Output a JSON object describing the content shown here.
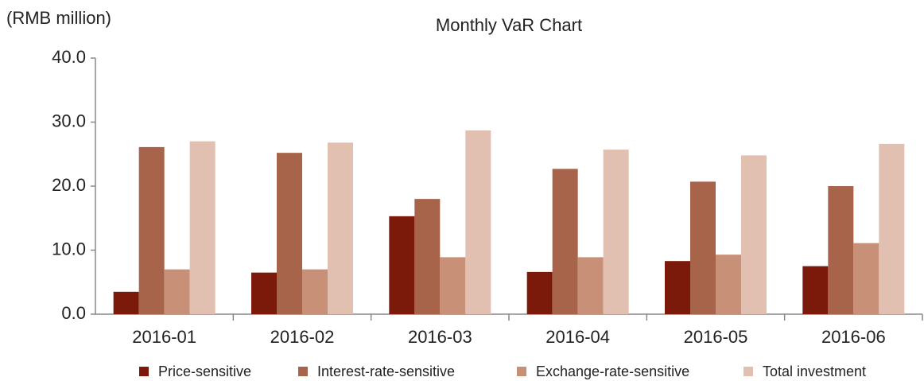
{
  "chart_data": {
    "type": "bar",
    "title": "Monthly VaR Chart",
    "y_label": "(RMB million)",
    "categories": [
      "2016-01",
      "2016-02",
      "2016-03",
      "2016-04",
      "2016-05",
      "2016-06"
    ],
    "series": [
      {
        "name": "Price-sensitive",
        "color": "#7b1a0a",
        "values": [
          3.5,
          6.5,
          15.3,
          6.6,
          8.3,
          7.5
        ]
      },
      {
        "name": "Interest-rate-sensitive",
        "color": "#a8644a",
        "values": [
          26.1,
          25.2,
          18.0,
          22.7,
          20.7,
          20.0
        ]
      },
      {
        "name": "Exchange-rate-sensitive",
        "color": "#c99078",
        "values": [
          7.0,
          7.0,
          8.9,
          8.9,
          9.3,
          11.1
        ]
      },
      {
        "name": "Total investment",
        "color": "#e2c0b1",
        "values": [
          27.0,
          26.8,
          28.7,
          25.7,
          24.8,
          26.6
        ]
      }
    ],
    "ylim": [
      0,
      40
    ],
    "yticks": [
      {
        "value": 0,
        "label": "0.0"
      },
      {
        "value": 10,
        "label": "10.0"
      },
      {
        "value": 20,
        "label": "20.0"
      },
      {
        "value": 30,
        "label": "30.0"
      },
      {
        "value": 40,
        "label": "40.0"
      }
    ],
    "grid": false,
    "legend": "bottom"
  }
}
